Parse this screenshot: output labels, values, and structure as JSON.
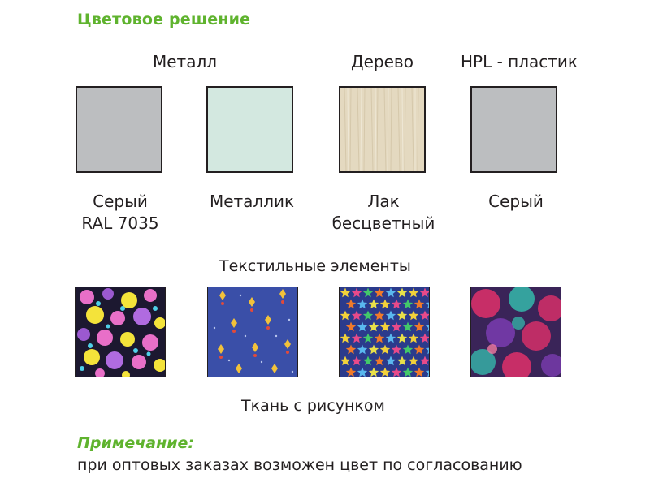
{
  "title": "Цветовое решение",
  "categories": {
    "metal": "Металл",
    "wood": "Дерево",
    "hpl": "HPL - пластик"
  },
  "swatches": [
    {
      "line1": "Серый",
      "line2": "RAL 7035",
      "color": "#bcbec0"
    },
    {
      "line1": "Металлик",
      "line2": "",
      "color": "#d3e8e0"
    },
    {
      "line1": "Лак",
      "line2": "бесцветный",
      "color": "#e4d9c0"
    },
    {
      "line1": "Серый",
      "line2": "",
      "color": "#bcbec0"
    }
  ],
  "textile_title": "Текстильные элементы",
  "fabric_label": "Ткань с рисунком",
  "note": {
    "title": "Примечание:",
    "text": "при оптовых заказах возможен цвет по согласованию"
  }
}
